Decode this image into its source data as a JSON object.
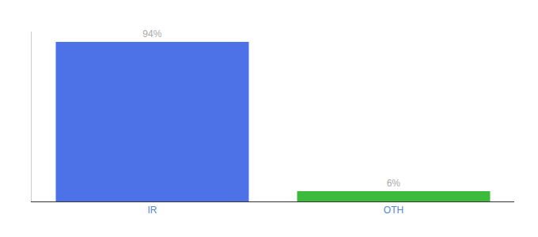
{
  "chart_data": {
    "type": "bar",
    "categories": [
      "IR",
      "OTH"
    ],
    "values": [
      94,
      6
    ],
    "value_labels": [
      "94%",
      "6%"
    ],
    "colors": [
      "#4d72e8",
      "#3dbb3d"
    ],
    "data_labels": true,
    "ylim": [
      0,
      100
    ],
    "grid": false,
    "tick_labels": "x"
  }
}
